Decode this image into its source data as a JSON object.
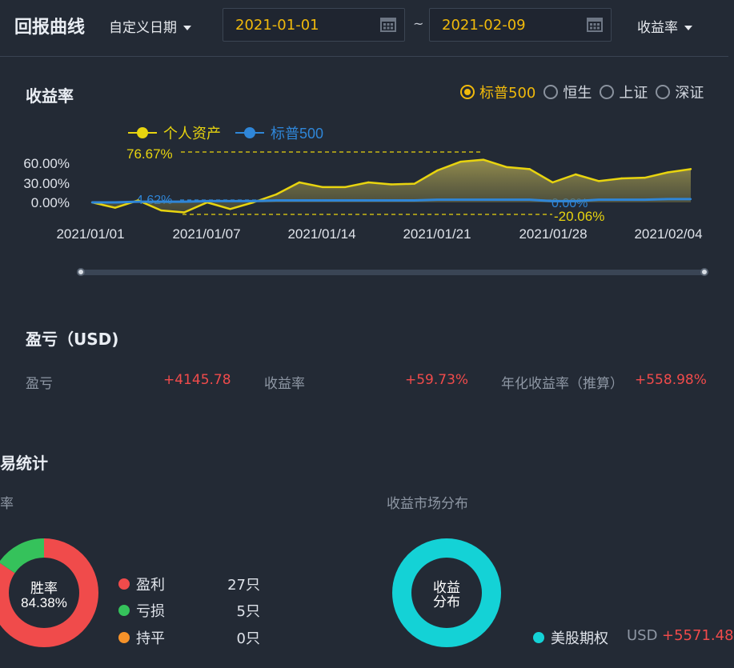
{
  "header": {
    "title": "回报曲线",
    "period_select": "自定义日期",
    "start_date": "2021-01-01",
    "end_date": "2021-02-09",
    "separator": "~",
    "metric_select": "收益率"
  },
  "returns_section": {
    "title": "收益率",
    "benchmarks": [
      {
        "label": "标普500",
        "selected": true
      },
      {
        "label": "恒生",
        "selected": false
      },
      {
        "label": "上证",
        "selected": false
      },
      {
        "label": "深证",
        "selected": false
      }
    ]
  },
  "chart_data": {
    "type": "line",
    "series": [
      {
        "name": "个人资产",
        "color": "#e8d40f",
        "values": [
          0,
          -8,
          3,
          -12,
          -15,
          0,
          -10,
          0,
          12,
          30,
          23,
          23,
          30,
          27,
          28,
          48,
          61,
          64,
          53,
          50,
          30,
          42,
          32,
          36,
          37,
          45,
          50
        ]
      },
      {
        "name": "标普500",
        "color": "#2f86d8",
        "values": [
          0,
          0,
          1,
          1,
          1,
          2,
          2,
          2,
          3,
          3,
          3,
          3,
          3,
          3,
          3,
          4,
          4,
          4,
          4,
          4,
          2,
          2,
          4,
          4,
          4,
          5,
          5
        ]
      }
    ],
    "x_tick_labels": [
      "2021/01/01",
      "2021/01/07",
      "2021/01/14",
      "2021/01/21",
      "2021/01/28",
      "2021/02/04"
    ],
    "y_tick_labels": [
      "60.00%",
      "30.00%",
      "0.00%"
    ],
    "ylabel": "",
    "xlabel": "",
    "annotations": {
      "max": "76.67%",
      "min": "-20.06%",
      "benchmark_start": "4.62%",
      "benchmark_end": "0.00%"
    },
    "legend_position": "top-left"
  },
  "pl_section": {
    "title": "盈亏（USD)",
    "items": [
      {
        "label": "盈亏",
        "value": "+4145.78"
      },
      {
        "label": "收益率",
        "value": "+59.73%"
      },
      {
        "label": "年化收益率（推算）",
        "value": "+558.98%"
      }
    ]
  },
  "trade_section": {
    "title": "易统计",
    "winrate_label": "率",
    "win_donut": {
      "center_line1": "胜率",
      "center_line2": "84.38%",
      "win_fraction": 0.8438
    },
    "win_legend": [
      {
        "label": "盈利",
        "count": "27只",
        "color": "#f04b4b"
      },
      {
        "label": "亏损",
        "count": "5只",
        "color": "#35c25b"
      },
      {
        "label": "持平",
        "count": "0只",
        "color": "#f5922a"
      }
    ],
    "market_title": "收益市场分布",
    "market_donut": {
      "center_line1": "收益",
      "center_line2": "分布",
      "color": "#14d2d6"
    },
    "market_legend": [
      {
        "label": "美股期权",
        "currency": "USD",
        "value": "+5571.48",
        "color": "#14d2d6"
      }
    ]
  }
}
